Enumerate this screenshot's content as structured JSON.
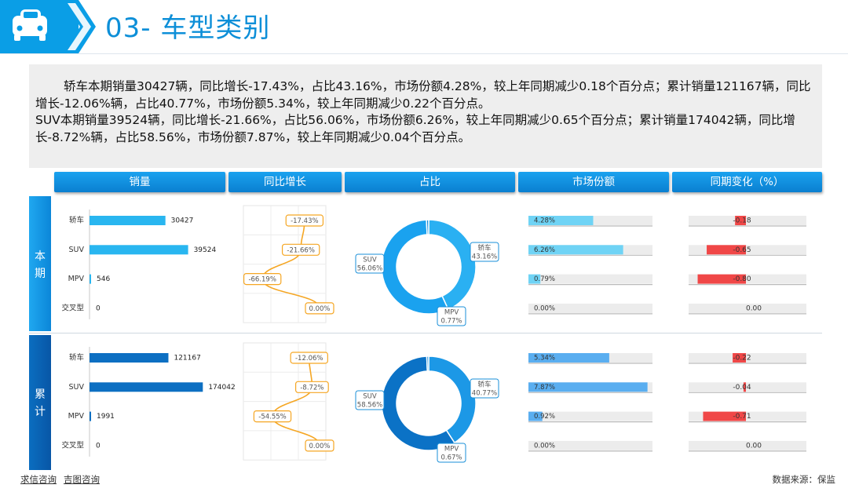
{
  "header": {
    "title": "03- 车型类别"
  },
  "summary": {
    "sedan": "轿车本期销量30427辆，同比增长-17.43%，占比43.16%，市场份额4.28%，较上年同期减少0.18个百分点；累计销量121167辆，同比增长-12.06%辆，占比40.77%，市场份额5.34%，较上年同期减少0.22个百分点。",
    "suv": "SUV本期销量39524辆，同比增长-21.66%，占比56.06%，市场份额6.26%，较上年同期减少0.65个百分点；累计销量174042辆，同比增长-8.72%辆，占比58.56%，市场份额7.87%，较上年同期减少0.04个百分点。"
  },
  "columns": [
    "销量",
    "同比增长",
    "占比",
    "市场份额",
    "同期变化（%）"
  ],
  "rows": [
    {
      "label_top": "本",
      "label_bottom": "期"
    },
    {
      "label_top": "累",
      "label_bottom": "计"
    }
  ],
  "footer": {
    "link1": "求信咨询",
    "link2": "吉图咨询",
    "source": "数据来源：保监"
  },
  "colors": {
    "bar_current": "#29b6f0",
    "bar_cumulative": "#0d6fc2",
    "growth_line": "#f5a623",
    "donut_current": "#1aa2ef",
    "donut_cumulative": "#0b72c6",
    "share_current": "#6fd3f5",
    "share_cumulative": "#5aaef0",
    "change_negative": "#f04747"
  },
  "chart_data": [
    {
      "section": "本期",
      "type": "bar",
      "metric": "销量",
      "categories": [
        "轿车",
        "SUV",
        "MPV",
        "交叉型"
      ],
      "values": [
        30427,
        39524,
        546,
        0
      ],
      "labels": [
        "30427",
        "39524",
        "546",
        "0"
      ]
    },
    {
      "section": "本期",
      "type": "line",
      "metric": "同比增长",
      "categories": [
        "轿车",
        "SUV",
        "MPV",
        "交叉型"
      ],
      "values": [
        -17.43,
        -21.66,
        -66.19,
        0.0
      ],
      "labels": [
        "-17.43%",
        "-21.66%",
        "-66.19%",
        "0.00%"
      ]
    },
    {
      "section": "本期",
      "type": "pie",
      "metric": "占比",
      "categories": [
        "轿车",
        "SUV",
        "MPV"
      ],
      "values": [
        43.16,
        56.06,
        0.77
      ],
      "labels": [
        "43.16%",
        "56.06%",
        "0.77%"
      ]
    },
    {
      "section": "本期",
      "type": "bar",
      "metric": "市场份额",
      "categories": [
        "轿车",
        "SUV",
        "MPV",
        "交叉型"
      ],
      "values": [
        4.28,
        6.26,
        0.79,
        0.0
      ],
      "labels": [
        "4.28%",
        "6.26%",
        "0.79%",
        "0.00%"
      ]
    },
    {
      "section": "本期",
      "type": "bar",
      "metric": "同期变化",
      "categories": [
        "轿车",
        "SUV",
        "MPV",
        "交叉型"
      ],
      "values": [
        -0.18,
        -0.65,
        -0.8,
        0.0
      ],
      "labels": [
        "-0.18",
        "-0.65",
        "-0.80",
        "0.00"
      ]
    },
    {
      "section": "累计",
      "type": "bar",
      "metric": "销量",
      "categories": [
        "轿车",
        "SUV",
        "MPV",
        "交叉型"
      ],
      "values": [
        121167,
        174042,
        1991,
        0
      ],
      "labels": [
        "121167",
        "174042",
        "1991",
        "0"
      ]
    },
    {
      "section": "累计",
      "type": "line",
      "metric": "同比增长",
      "categories": [
        "轿车",
        "SUV",
        "MPV",
        "交叉型"
      ],
      "values": [
        -12.06,
        -8.72,
        -54.55,
        0.0
      ],
      "labels": [
        "-12.06%",
        "-8.72%",
        "-54.55%",
        "0.00%"
      ]
    },
    {
      "section": "累计",
      "type": "pie",
      "metric": "占比",
      "categories": [
        "轿车",
        "SUV",
        "MPV"
      ],
      "values": [
        40.77,
        58.56,
        0.67
      ],
      "labels": [
        "40.77%",
        "58.56%",
        "0.67%"
      ]
    },
    {
      "section": "累计",
      "type": "bar",
      "metric": "市场份额",
      "categories": [
        "轿车",
        "SUV",
        "MPV",
        "交叉型"
      ],
      "values": [
        5.34,
        7.87,
        0.92,
        0.0
      ],
      "labels": [
        "5.34%",
        "7.87%",
        "0.92%",
        "0.00%"
      ]
    },
    {
      "section": "累计",
      "type": "bar",
      "metric": "同期变化",
      "categories": [
        "轿车",
        "SUV",
        "MPV",
        "交叉型"
      ],
      "values": [
        -0.22,
        -0.04,
        -0.71,
        0.0
      ],
      "labels": [
        "-0.22",
        "-0.04",
        "-0.71",
        "0.00"
      ]
    }
  ]
}
